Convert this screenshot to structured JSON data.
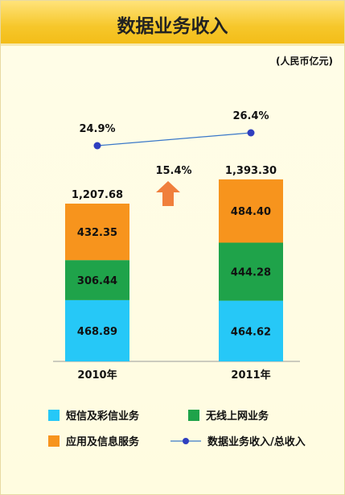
{
  "title": "数据业务收入",
  "unit": "(人民币亿元)",
  "chart_data": {
    "type": "bar",
    "stacked": true,
    "categories": [
      "2010年",
      "2011年"
    ],
    "series": [
      {
        "name": "短信及彩信业务",
        "values": [
          468.89,
          464.62
        ],
        "color": "#26c8f7"
      },
      {
        "name": "无线上网业务",
        "values": [
          306.44,
          444.28
        ],
        "color": "#1fa34a"
      },
      {
        "name": "应用及信息服务",
        "values": [
          432.35,
          484.4
        ],
        "color": "#f7941d"
      }
    ],
    "totals": [
      "1,207.68",
      "1,393.30"
    ],
    "value_labels": [
      [
        "468.89",
        "306.44",
        "432.35"
      ],
      [
        "464.62",
        "444.28",
        "484.40"
      ]
    ],
    "line": {
      "name": "数据业务收入/总收入",
      "values": [
        24.9,
        26.4
      ],
      "labels": [
        "24.9%",
        "26.4%"
      ],
      "color": "#2f3fbf"
    },
    "growth": {
      "label": "15.4%",
      "arrow": "up-arrow",
      "color": "#f07f3c"
    },
    "legend_position": "bottom",
    "grid": false
  }
}
